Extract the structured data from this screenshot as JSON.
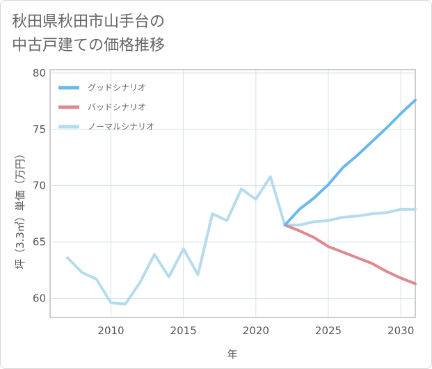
{
  "title_lines": [
    "秋田県秋田市山手台の",
    "中古戸建ての価格推移"
  ],
  "chart_data": {
    "type": "line",
    "xlabel": "年",
    "ylabel": "坪（3.3㎡）単価（万円）",
    "xlim": [
      2005.8,
      2031
    ],
    "ylim": [
      58.3,
      80.3
    ],
    "xticks": [
      2010,
      2015,
      2020,
      2025,
      2030
    ],
    "yticks": [
      60,
      65,
      70,
      75,
      80
    ],
    "grid": true,
    "legend_position": "top-left",
    "series": [
      {
        "name": "グッドシナリオ",
        "color": "#6bb8ea",
        "x": [
          2022,
          2023,
          2024,
          2025,
          2026,
          2027,
          2028,
          2029,
          2030,
          2031
        ],
        "values": [
          66.5,
          67.9,
          68.9,
          70.1,
          71.6,
          72.7,
          73.9,
          75.1,
          76.4,
          77.6
        ]
      },
      {
        "name": "バッドシナリオ",
        "color": "#dc8a90",
        "x": [
          2022,
          2023,
          2024,
          2025,
          2026,
          2027,
          2028,
          2029,
          2030,
          2031
        ],
        "values": [
          66.5,
          66.0,
          65.4,
          64.6,
          64.1,
          63.6,
          63.1,
          62.4,
          61.8,
          61.3
        ]
      },
      {
        "name": "ノーマルシナリオ",
        "color": "#b5dcec",
        "x": [
          2007,
          2008,
          2009,
          2010,
          2011,
          2012,
          2013,
          2014,
          2015,
          2016,
          2017,
          2018,
          2019,
          2020,
          2021,
          2022,
          2023,
          2024,
          2025,
          2026,
          2027,
          2028,
          2029,
          2030,
          2031
        ],
        "values": [
          63.6,
          62.3,
          61.7,
          59.6,
          59.5,
          61.4,
          63.9,
          61.9,
          64.4,
          62.1,
          67.5,
          66.9,
          69.7,
          68.8,
          70.8,
          66.5,
          66.5,
          66.8,
          66.9,
          67.2,
          67.3,
          67.5,
          67.6,
          67.9,
          67.9
        ]
      }
    ]
  }
}
